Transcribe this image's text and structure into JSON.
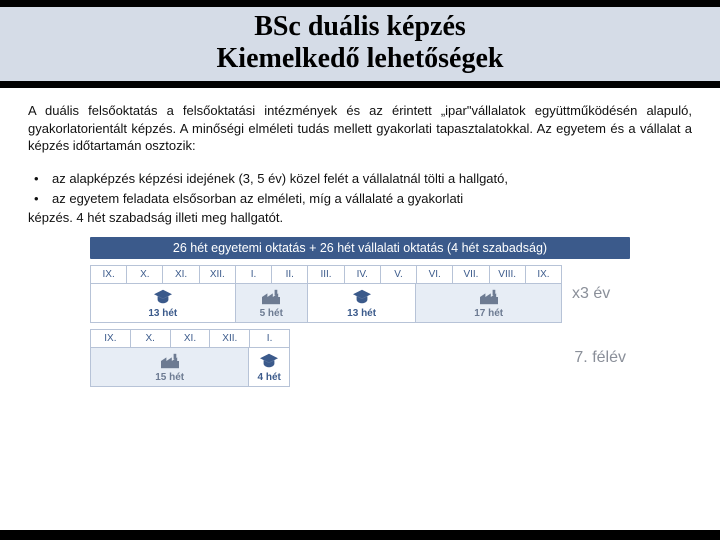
{
  "title": {
    "line1": "BSc duális képzés",
    "line2": "Kiemelkedő lehetőségek"
  },
  "paragraph": "A duális felsőoktatás a felsőoktatási intézmények és az érintett „ipar\"vállalatok együttműködésén alapuló, gyakorlatorientált képzés. A minőségi elméleti tudás mellett gyakorlati tapasztalatokkal. Az egyetem és a vállalat a képzés időtartamán osztozik:",
  "bullets": [
    "az alapképzés képzési idejének (3, 5 év) közel felét a vállalatnál tölti a hallgató,",
    "az egyetem feladata elsősorban az elméleti, míg a vállalaté a      gyakorlati"
  ],
  "tail": "képzés. 4 hét szabadság illeti meg hallgatót.",
  "diagram": {
    "header": "26 hét egyetemi oktatás + 26 hét vállalati oktatás (4 hét szabadság)",
    "colors": {
      "band_bg": "#3b5a8b",
      "band_text": "#ffffff",
      "cell_border": "#b7c3d7",
      "month_text": "#3b5a8b",
      "uni_bg": "#ffffff",
      "uni_text": "#3b5a8b",
      "company_bg": "#e7edf5",
      "company_text": "#6d7b92",
      "side_text": "#8a8f99"
    },
    "year": {
      "months": [
        "IX.",
        "X.",
        "XI.",
        "XII.",
        "I.",
        "II.",
        "III.",
        "IV.",
        "V.",
        "VI.",
        "VII.",
        "VIII.",
        "IX."
      ],
      "segments": [
        {
          "kind": "uni",
          "span": 4,
          "label": "13 hét",
          "icon": "grad"
        },
        {
          "kind": "company",
          "span": 2,
          "label": "5 hét",
          "icon": "factory"
        },
        {
          "kind": "uni",
          "span": 3,
          "label": "13 hét",
          "icon": "grad"
        },
        {
          "kind": "company",
          "span": 4,
          "label": "17 hét",
          "icon": "factory"
        }
      ],
      "side": "x3 év"
    },
    "half": {
      "months": [
        "IX.",
        "X.",
        "XI.",
        "XII.",
        "I."
      ],
      "segments": [
        {
          "kind": "company",
          "span": 4,
          "label": "15 hét",
          "icon": "factory"
        },
        {
          "kind": "uni",
          "span": 1,
          "label": "4 hét",
          "icon": "grad"
        }
      ],
      "side": "7. félév"
    }
  }
}
